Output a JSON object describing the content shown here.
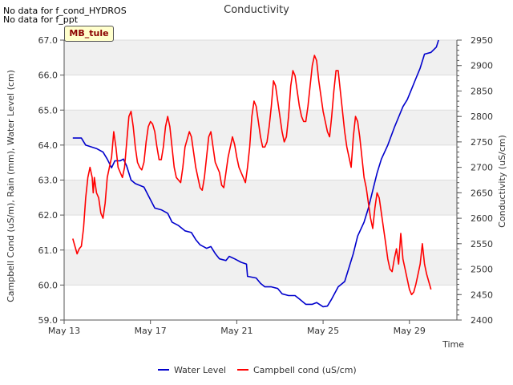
{
  "notes": [
    "No data for f_cond_HYDROS",
    "No data for f_ppt"
  ],
  "site_badge": "MB_tule",
  "chart_data": {
    "type": "line",
    "title": "Conductivity",
    "xlabel": "Time",
    "ylabel_left": "Campbell Cond (uS/m), Rain (mm), Water Level (cm)",
    "ylabel_right": "Conductivity (uS/cm)",
    "x_range_days": [
      0,
      18.2
    ],
    "x_ticks": [
      {
        "label": "May 13",
        "day": 0
      },
      {
        "label": "May 17",
        "day": 4
      },
      {
        "label": "May 21",
        "day": 8
      },
      {
        "label": "May 25",
        "day": 12
      },
      {
        "label": "May 29",
        "day": 16
      }
    ],
    "ylim_left": [
      59.0,
      67.0
    ],
    "yticks_left": [
      "59.0",
      "60.0",
      "61.0",
      "62.0",
      "63.0",
      "64.0",
      "65.0",
      "66.0",
      "67.0"
    ],
    "ylim_right": [
      2400,
      2950
    ],
    "yticks_right": [
      "2400",
      "2450",
      "2500",
      "2550",
      "2600",
      "2650",
      "2700",
      "2750",
      "2800",
      "2850",
      "2900",
      "2950"
    ],
    "grid": true,
    "legend_position": "bottom",
    "series": [
      {
        "name": "Water Level",
        "axis": "left",
        "color": "#0000cc",
        "points": [
          [
            0.4,
            64.2
          ],
          [
            0.8,
            64.2
          ],
          [
            1.0,
            64.0
          ],
          [
            1.5,
            63.9
          ],
          [
            1.8,
            63.8
          ],
          [
            2.0,
            63.6
          ],
          [
            2.2,
            63.35
          ],
          [
            2.35,
            63.55
          ],
          [
            2.6,
            63.55
          ],
          [
            2.75,
            63.6
          ],
          [
            2.9,
            63.4
          ],
          [
            3.1,
            63.0
          ],
          [
            3.3,
            62.9
          ],
          [
            3.7,
            62.8
          ],
          [
            3.95,
            62.5
          ],
          [
            4.2,
            62.2
          ],
          [
            4.5,
            62.15
          ],
          [
            4.8,
            62.05
          ],
          [
            5.0,
            61.8
          ],
          [
            5.3,
            61.7
          ],
          [
            5.6,
            61.55
          ],
          [
            5.9,
            61.5
          ],
          [
            6.1,
            61.3
          ],
          [
            6.3,
            61.15
          ],
          [
            6.6,
            61.05
          ],
          [
            6.8,
            61.1
          ],
          [
            7.0,
            60.9
          ],
          [
            7.2,
            60.75
          ],
          [
            7.5,
            60.7
          ],
          [
            7.65,
            60.82
          ],
          [
            7.9,
            60.75
          ],
          [
            8.2,
            60.65
          ],
          [
            8.45,
            60.6
          ],
          [
            8.5,
            60.25
          ],
          [
            8.9,
            60.2
          ],
          [
            9.1,
            60.05
          ],
          [
            9.3,
            59.95
          ],
          [
            9.6,
            59.95
          ],
          [
            9.9,
            59.9
          ],
          [
            10.1,
            59.75
          ],
          [
            10.4,
            59.7
          ],
          [
            10.7,
            59.7
          ],
          [
            10.9,
            59.6
          ],
          [
            11.2,
            59.45
          ],
          [
            11.5,
            59.45
          ],
          [
            11.7,
            59.5
          ],
          [
            11.9,
            59.42
          ],
          [
            12.0,
            59.38
          ],
          [
            12.2,
            59.4
          ],
          [
            12.4,
            59.6
          ],
          [
            12.7,
            59.95
          ],
          [
            13.0,
            60.1
          ],
          [
            13.2,
            60.5
          ],
          [
            13.4,
            60.9
          ],
          [
            13.6,
            61.4
          ],
          [
            13.9,
            61.8
          ],
          [
            14.1,
            62.2
          ],
          [
            14.3,
            62.7
          ],
          [
            14.5,
            63.2
          ],
          [
            14.7,
            63.6
          ],
          [
            15.0,
            64.0
          ],
          [
            15.3,
            64.5
          ],
          [
            15.5,
            64.8
          ],
          [
            15.7,
            65.1
          ],
          [
            15.9,
            65.3
          ],
          [
            16.1,
            65.6
          ],
          [
            16.3,
            65.9
          ],
          [
            16.5,
            66.2
          ],
          [
            16.7,
            66.6
          ],
          [
            17.0,
            66.65
          ],
          [
            17.25,
            66.8
          ],
          [
            17.35,
            67.0
          ]
        ]
      },
      {
        "name": "Campbell cond (uS/cm)",
        "axis": "right",
        "color": "#ff0000",
        "points": [
          [
            0.4,
            2560
          ],
          [
            0.5,
            2545
          ],
          [
            0.6,
            2530
          ],
          [
            0.7,
            2540
          ],
          [
            0.8,
            2545
          ],
          [
            0.9,
            2580
          ],
          [
            1.0,
            2640
          ],
          [
            1.1,
            2680
          ],
          [
            1.2,
            2700
          ],
          [
            1.3,
            2680
          ],
          [
            1.35,
            2650
          ],
          [
            1.4,
            2680
          ],
          [
            1.5,
            2650
          ],
          [
            1.6,
            2640
          ],
          [
            1.7,
            2610
          ],
          [
            1.8,
            2600
          ],
          [
            1.9,
            2630
          ],
          [
            2.0,
            2680
          ],
          [
            2.1,
            2700
          ],
          [
            2.2,
            2720
          ],
          [
            2.3,
            2770
          ],
          [
            2.4,
            2740
          ],
          [
            2.5,
            2700
          ],
          [
            2.6,
            2690
          ],
          [
            2.7,
            2680
          ],
          [
            2.8,
            2700
          ],
          [
            2.9,
            2750
          ],
          [
            3.0,
            2800
          ],
          [
            3.1,
            2810
          ],
          [
            3.2,
            2780
          ],
          [
            3.3,
            2740
          ],
          [
            3.4,
            2710
          ],
          [
            3.5,
            2700
          ],
          [
            3.6,
            2695
          ],
          [
            3.7,
            2710
          ],
          [
            3.8,
            2750
          ],
          [
            3.9,
            2780
          ],
          [
            4.0,
            2790
          ],
          [
            4.1,
            2785
          ],
          [
            4.2,
            2770
          ],
          [
            4.3,
            2740
          ],
          [
            4.4,
            2715
          ],
          [
            4.5,
            2715
          ],
          [
            4.6,
            2740
          ],
          [
            4.7,
            2780
          ],
          [
            4.8,
            2800
          ],
          [
            4.9,
            2780
          ],
          [
            5.0,
            2740
          ],
          [
            5.1,
            2700
          ],
          [
            5.2,
            2680
          ],
          [
            5.3,
            2675
          ],
          [
            5.4,
            2670
          ],
          [
            5.5,
            2700
          ],
          [
            5.6,
            2740
          ],
          [
            5.8,
            2770
          ],
          [
            5.9,
            2760
          ],
          [
            6.0,
            2730
          ],
          [
            6.1,
            2700
          ],
          [
            6.2,
            2680
          ],
          [
            6.3,
            2660
          ],
          [
            6.4,
            2655
          ],
          [
            6.5,
            2680
          ],
          [
            6.6,
            2720
          ],
          [
            6.7,
            2760
          ],
          [
            6.8,
            2770
          ],
          [
            6.9,
            2740
          ],
          [
            7.0,
            2710
          ],
          [
            7.2,
            2690
          ],
          [
            7.3,
            2665
          ],
          [
            7.4,
            2660
          ],
          [
            7.5,
            2690
          ],
          [
            7.6,
            2720
          ],
          [
            7.7,
            2740
          ],
          [
            7.8,
            2760
          ],
          [
            7.9,
            2745
          ],
          [
            8.0,
            2720
          ],
          [
            8.1,
            2700
          ],
          [
            8.2,
            2690
          ],
          [
            8.3,
            2680
          ],
          [
            8.4,
            2670
          ],
          [
            8.5,
            2700
          ],
          [
            8.6,
            2740
          ],
          [
            8.7,
            2800
          ],
          [
            8.8,
            2830
          ],
          [
            8.9,
            2820
          ],
          [
            9.0,
            2790
          ],
          [
            9.1,
            2760
          ],
          [
            9.2,
            2740
          ],
          [
            9.3,
            2740
          ],
          [
            9.4,
            2750
          ],
          [
            9.5,
            2780
          ],
          [
            9.6,
            2820
          ],
          [
            9.7,
            2870
          ],
          [
            9.8,
            2860
          ],
          [
            9.9,
            2830
          ],
          [
            10.0,
            2800
          ],
          [
            10.1,
            2770
          ],
          [
            10.2,
            2750
          ],
          [
            10.3,
            2760
          ],
          [
            10.4,
            2800
          ],
          [
            10.5,
            2860
          ],
          [
            10.6,
            2890
          ],
          [
            10.7,
            2880
          ],
          [
            10.8,
            2850
          ],
          [
            10.9,
            2820
          ],
          [
            11.0,
            2800
          ],
          [
            11.1,
            2790
          ],
          [
            11.2,
            2790
          ],
          [
            11.3,
            2820
          ],
          [
            11.4,
            2860
          ],
          [
            11.5,
            2900
          ],
          [
            11.6,
            2920
          ],
          [
            11.7,
            2910
          ],
          [
            11.8,
            2870
          ],
          [
            11.9,
            2840
          ],
          [
            12.0,
            2810
          ],
          [
            12.1,
            2790
          ],
          [
            12.2,
            2770
          ],
          [
            12.3,
            2760
          ],
          [
            12.4,
            2800
          ],
          [
            12.5,
            2850
          ],
          [
            12.6,
            2890
          ],
          [
            12.7,
            2890
          ],
          [
            12.8,
            2850
          ],
          [
            12.9,
            2810
          ],
          [
            13.0,
            2770
          ],
          [
            13.1,
            2740
          ],
          [
            13.2,
            2720
          ],
          [
            13.3,
            2700
          ],
          [
            13.4,
            2760
          ],
          [
            13.5,
            2800
          ],
          [
            13.6,
            2790
          ],
          [
            13.7,
            2760
          ],
          [
            13.8,
            2720
          ],
          [
            13.9,
            2680
          ],
          [
            14.0,
            2660
          ],
          [
            14.1,
            2630
          ],
          [
            14.2,
            2600
          ],
          [
            14.3,
            2580
          ],
          [
            14.4,
            2620
          ],
          [
            14.5,
            2650
          ],
          [
            14.6,
            2640
          ],
          [
            14.7,
            2610
          ],
          [
            14.8,
            2580
          ],
          [
            14.9,
            2550
          ],
          [
            15.0,
            2520
          ],
          [
            15.1,
            2500
          ],
          [
            15.2,
            2495
          ],
          [
            15.3,
            2520
          ],
          [
            15.4,
            2540
          ],
          [
            15.5,
            2510
          ],
          [
            15.6,
            2570
          ],
          [
            15.7,
            2520
          ],
          [
            15.8,
            2500
          ],
          [
            15.9,
            2480
          ],
          [
            16.0,
            2460
          ],
          [
            16.1,
            2450
          ],
          [
            16.2,
            2455
          ],
          [
            16.3,
            2470
          ],
          [
            16.4,
            2490
          ],
          [
            16.5,
            2510
          ],
          [
            16.6,
            2550
          ],
          [
            16.7,
            2510
          ],
          [
            16.8,
            2490
          ],
          [
            16.9,
            2475
          ],
          [
            17.0,
            2460
          ]
        ]
      }
    ]
  }
}
